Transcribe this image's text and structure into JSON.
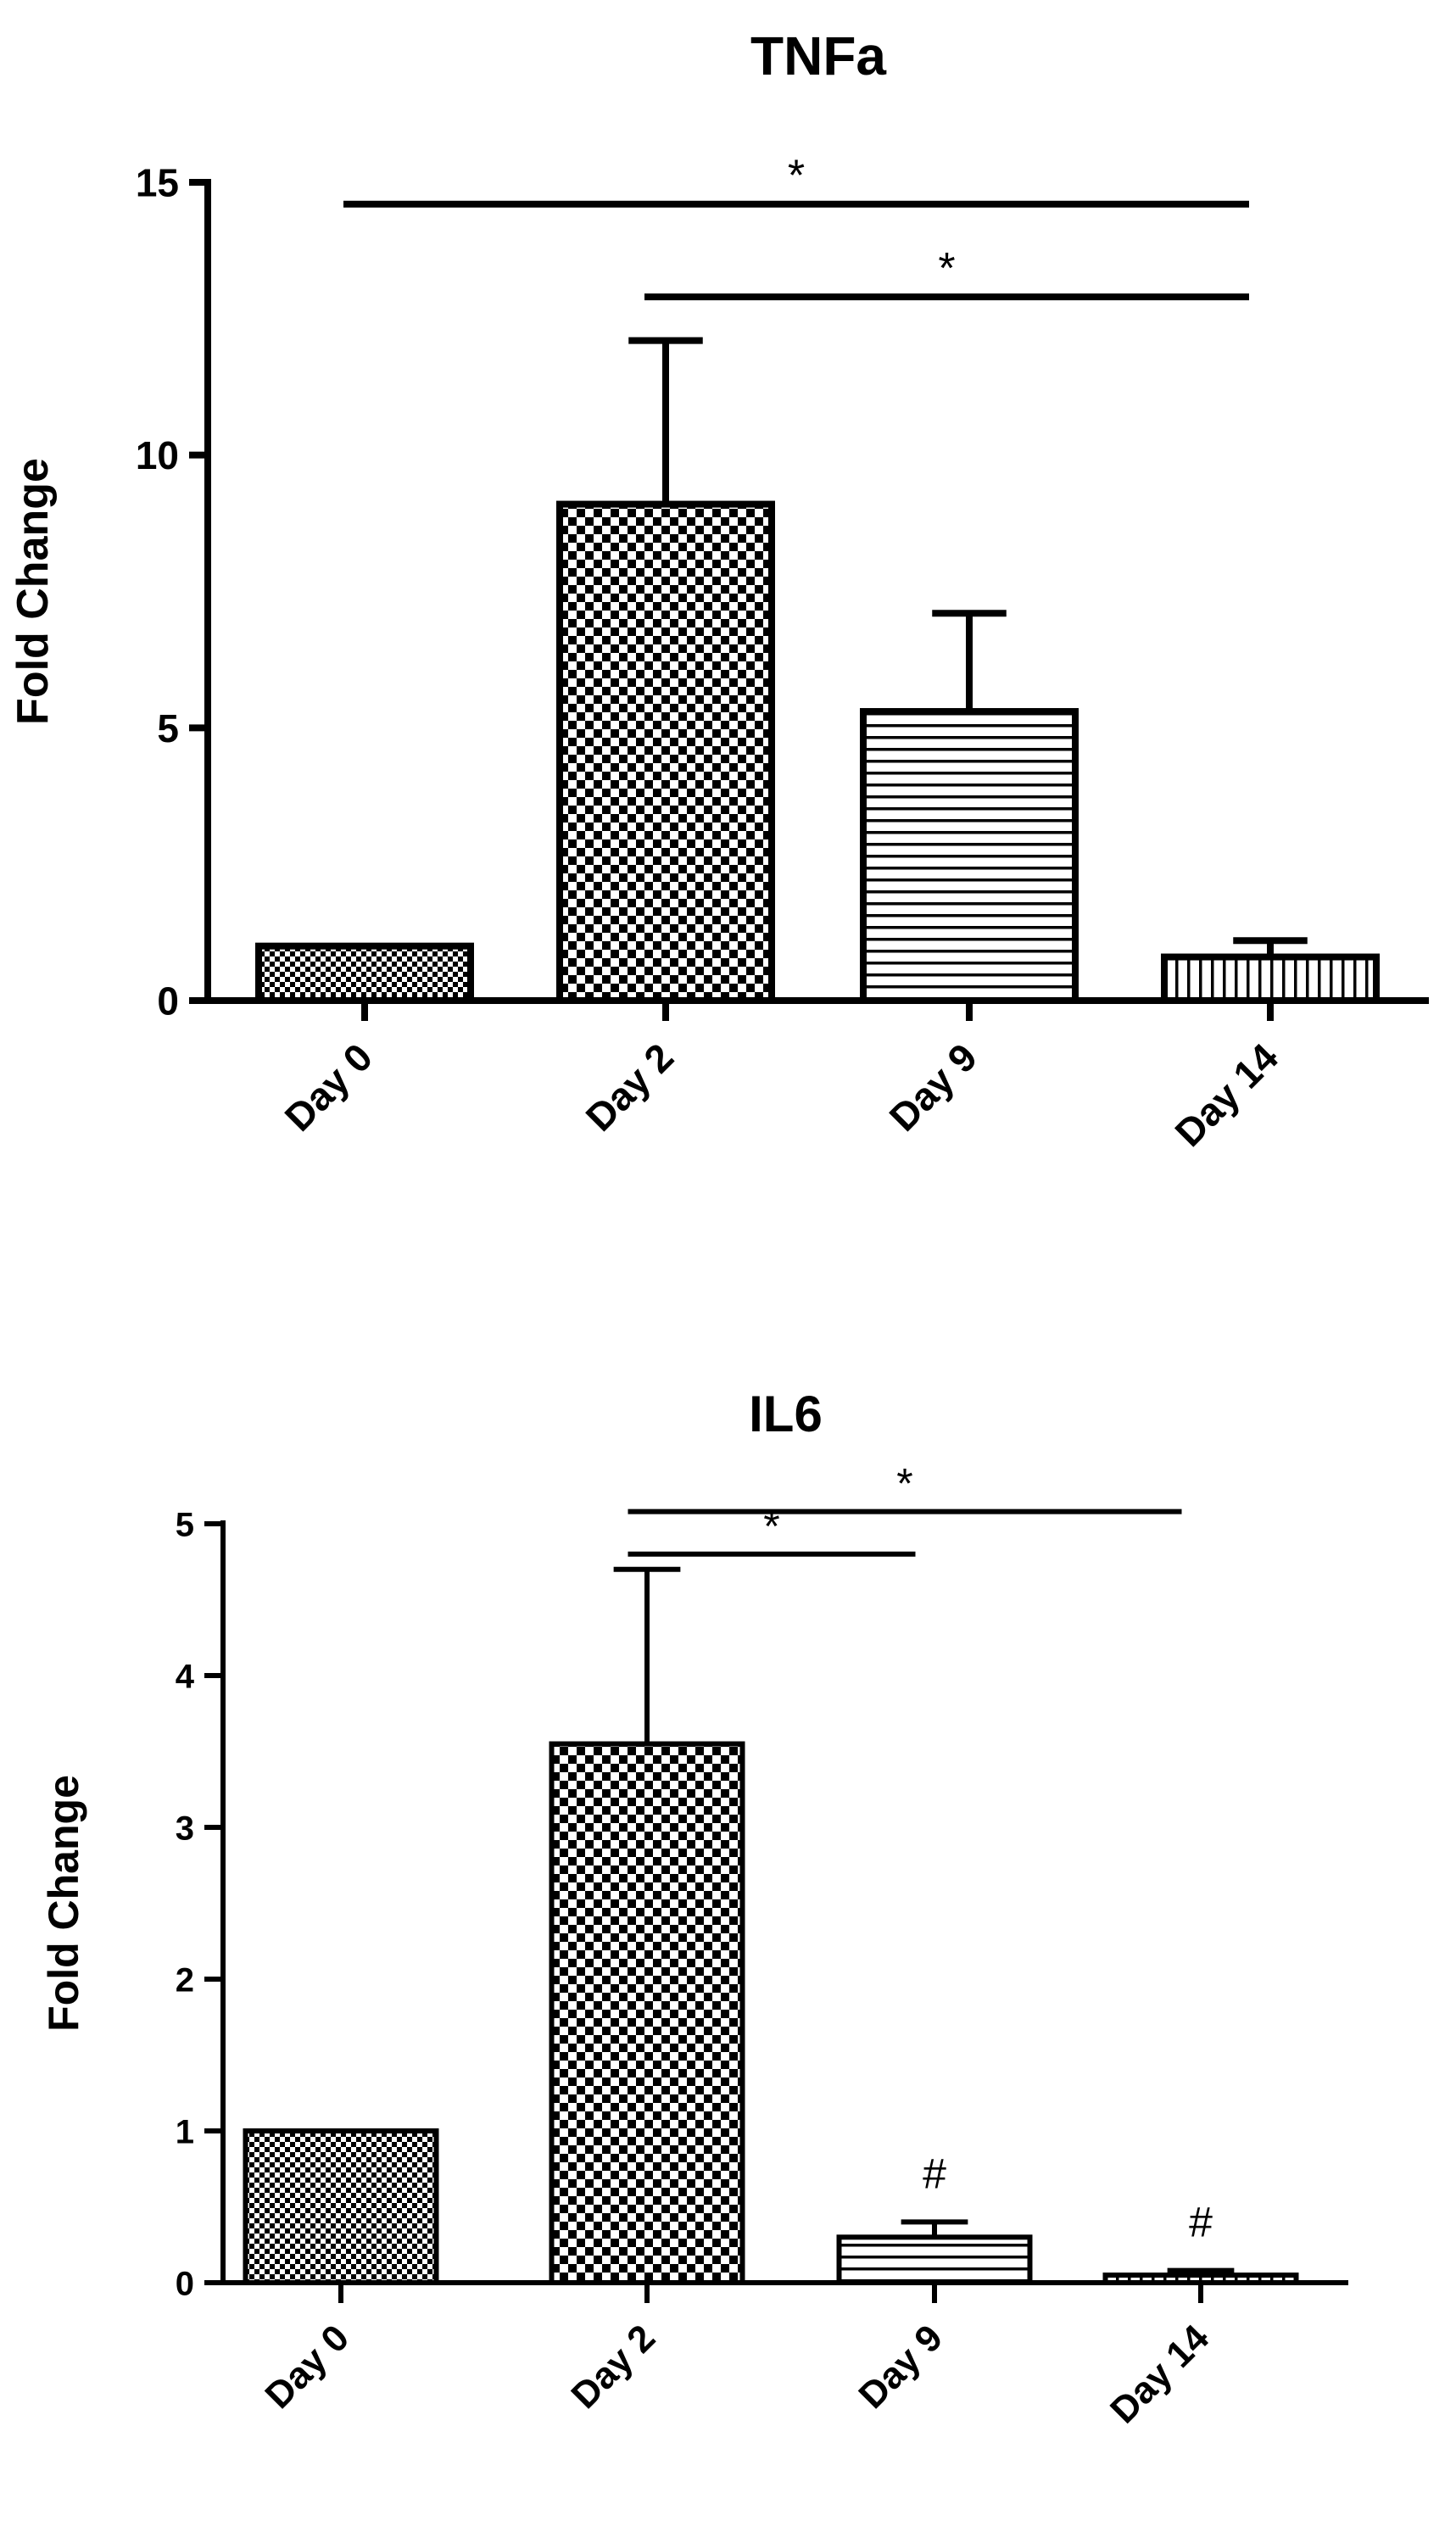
{
  "chart_data": [
    {
      "type": "bar",
      "title": "TNFa",
      "xlabel": "",
      "ylabel": "Fold Change",
      "ylim": [
        0,
        15
      ],
      "yticks": [
        0,
        5,
        10,
        15
      ],
      "categories": [
        "Day 0",
        "Day 2",
        "Day 9",
        "Day 14"
      ],
      "values": [
        1.0,
        9.1,
        5.3,
        0.8
      ],
      "error_bars": [
        0.0,
        3.0,
        1.8,
        0.3
      ],
      "fill_patterns": [
        "fine-checker",
        "checker",
        "horizontal-stripes",
        "vertical-stripes"
      ],
      "point_annotations": [
        "",
        "",
        "",
        ""
      ],
      "significance": [
        {
          "from": "Day 0",
          "to": "Day 14",
          "level": 14.6,
          "label": "*"
        },
        {
          "from": "Day 2",
          "to": "Day 14",
          "level": 12.9,
          "label": "*"
        }
      ],
      "grid": false,
      "legend": "none"
    },
    {
      "type": "bar",
      "title": "IL6",
      "xlabel": "",
      "ylabel": "Fold Change",
      "ylim": [
        0,
        5
      ],
      "yticks": [
        0,
        1,
        2,
        3,
        4,
        5
      ],
      "categories": [
        "Day 0",
        "Day 2",
        "Day 9",
        "Day 14"
      ],
      "values": [
        1.0,
        3.55,
        0.3,
        0.05
      ],
      "error_bars": [
        0.0,
        1.15,
        0.1,
        0.03
      ],
      "fill_patterns": [
        "fine-checker",
        "checker",
        "horizontal-stripes",
        "vertical-stripes"
      ],
      "point_annotations": [
        "",
        "",
        "#",
        "#"
      ],
      "significance": [
        {
          "from": "Day 2",
          "to": "Day 9",
          "level": 4.8,
          "label": "*"
        },
        {
          "from": "Day 2",
          "to": "Day 14",
          "level": 5.08,
          "label": "*"
        }
      ],
      "grid": false,
      "legend": "none"
    }
  ]
}
